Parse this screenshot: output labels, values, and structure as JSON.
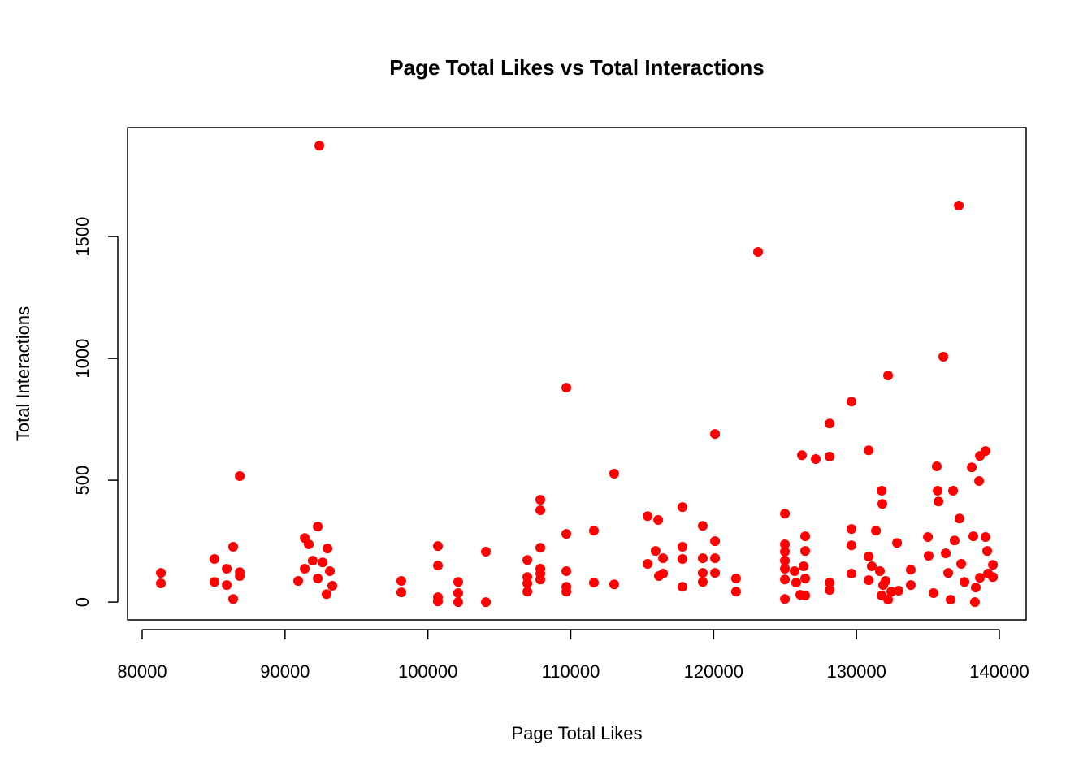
{
  "chart_data": {
    "type": "scatter",
    "title": "Page Total Likes vs Total Interactions",
    "x_label": "Page Total Likes",
    "y_label": "Total Interactions",
    "color": "#ff0000",
    "xlim": [
      78976,
      141877
    ],
    "ylim": [
      -73,
      1947
    ],
    "xticks": [
      80000,
      90000,
      100000,
      110000,
      120000,
      130000,
      140000
    ],
    "yticks": [
      0,
      500,
      1000,
      1500
    ],
    "x": [
      81310,
      81310,
      85060,
      85060,
      85920,
      85920,
      86370,
      86370,
      86830,
      86830,
      86830,
      90920,
      91380,
      91660,
      91380,
      91940,
      92290,
      92400,
      92290,
      92630,
      92970,
      92910,
      93140,
      93310,
      98140,
      98140,
      100700,
      100700,
      100700,
      100700,
      102120,
      102120,
      102120,
      104060,
      104060,
      106960,
      106960,
      106960,
      106960,
      107870,
      107870,
      107870,
      107870,
      107870,
      107870,
      109690,
      109690,
      109690,
      109690,
      109690,
      111620,
      111620,
      113040,
      113040,
      115380,
      115380,
      115940,
      116120,
      116170,
      116460,
      116460,
      117820,
      117820,
      117820,
      117820,
      119240,
      119240,
      119240,
      119240,
      120100,
      120100,
      120100,
      120100,
      121570,
      121570,
      123110,
      124990,
      124990,
      124990,
      124990,
      124990,
      124990,
      124990,
      125670,
      125780,
      126070,
      126180,
      126300,
      126410,
      126410,
      126410,
      126410,
      127150,
      128120,
      128120,
      128120,
      128120,
      129650,
      129650,
      129650,
      129650,
      130850,
      130850,
      130850,
      131070,
      131360,
      131640,
      131760,
      131810,
      131870,
      131760,
      132040,
      132210,
      132210,
      132440,
      132840,
      132950,
      133800,
      133800,
      135000,
      135050,
      135390,
      135620,
      135680,
      135740,
      136080,
      136250,
      136420,
      136590,
      136760,
      136870,
      137160,
      137210,
      137330,
      137560,
      138070,
      138180,
      138290,
      138580,
      138640,
      139030,
      139030,
      139150,
      139210,
      139550,
      139550,
      138640,
      138350
    ],
    "y": [
      120,
      77,
      177,
      83,
      137,
      70,
      227,
      13,
      517,
      123,
      107,
      87,
      263,
      237,
      137,
      170,
      310,
      1873,
      97,
      163,
      220,
      33,
      127,
      67,
      87,
      40,
      230,
      150,
      20,
      3,
      83,
      37,
      0,
      207,
      0,
      173,
      103,
      77,
      43,
      420,
      377,
      223,
      137,
      117,
      93,
      880,
      280,
      127,
      63,
      43,
      293,
      80,
      527,
      73,
      353,
      157,
      210,
      337,
      107,
      180,
      117,
      390,
      227,
      177,
      63,
      313,
      180,
      120,
      83,
      690,
      250,
      180,
      120,
      97,
      43,
      1437,
      363,
      237,
      207,
      170,
      137,
      93,
      13,
      127,
      80,
      30,
      603,
      147,
      270,
      210,
      97,
      27,
      587,
      733,
      597,
      80,
      50,
      823,
      300,
      233,
      117,
      623,
      187,
      90,
      147,
      293,
      127,
      457,
      403,
      70,
      27,
      87,
      930,
      10,
      43,
      243,
      47,
      133,
      70,
      267,
      190,
      37,
      557,
      457,
      413,
      1007,
      200,
      120,
      10,
      457,
      253,
      1627,
      343,
      157,
      83,
      553,
      270,
      0,
      497,
      600,
      620,
      267,
      210,
      117,
      153,
      103,
      100,
      60
    ]
  }
}
